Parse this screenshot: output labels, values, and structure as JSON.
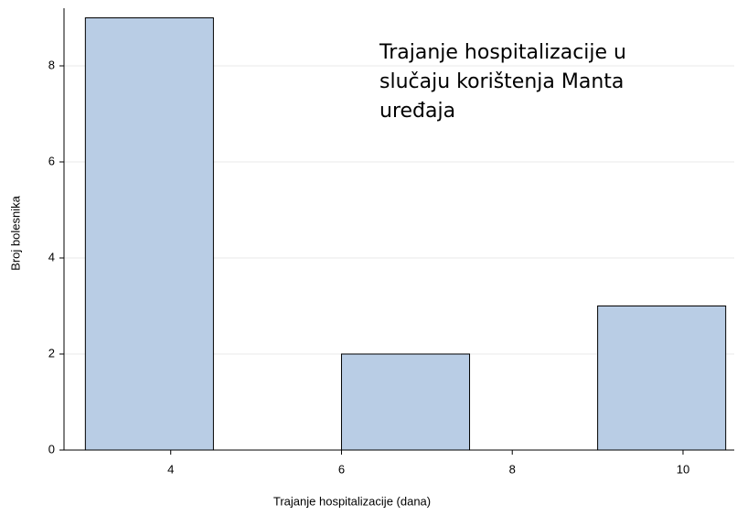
{
  "chart_data": {
    "type": "histogram",
    "xlabel": "Trajanje hospitalizacije (dana)",
    "ylabel": "Broj bolesnika",
    "annotation": [
      "Trajanje hospitalizacije u",
      "slučaju  korištenja Manta",
      "uređaja"
    ],
    "bins": [
      3,
      4.5,
      6,
      7.5,
      9,
      10.5
    ],
    "values": [
      9,
      0,
      2,
      0,
      3
    ],
    "color": "#b9cde5",
    "edgecolor": "#000000",
    "xlim": [
      2.75,
      10.6
    ],
    "ylim": [
      0,
      9.2
    ],
    "xticks": [
      4,
      6,
      8,
      10
    ],
    "yticks": [
      0,
      2,
      4,
      6,
      8
    ],
    "grid": true
  }
}
